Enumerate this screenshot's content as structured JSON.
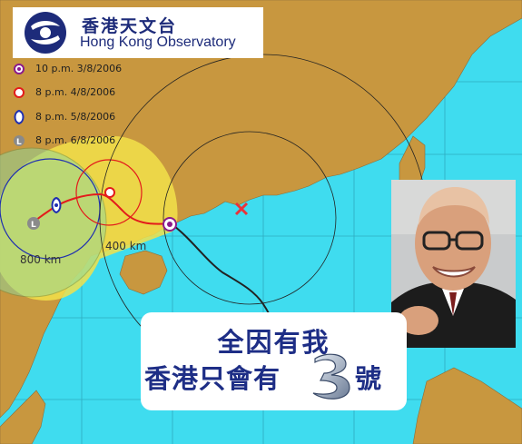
{
  "logo": {
    "name_zh": "香港天文台",
    "name_en": "Hong Kong Observatory"
  },
  "legend": [
    {
      "label": "10 p.m. 3/8/2006",
      "color": "#8b1a8b",
      "icon": "typhoon-icon"
    },
    {
      "label": "8 p.m. 4/8/2006",
      "color": "#e31b1b",
      "icon": "typhoon-icon"
    },
    {
      "label": "8 p.m. 5/8/2006",
      "color": "#1f2fb0",
      "icon": "typhoon-icon"
    },
    {
      "label": "8 p.m. 6/8/2006",
      "color": "#8a8a8a",
      "icon": "low-pressure-icon"
    }
  ],
  "map": {
    "radius_labels": [
      "400 km",
      "800 km"
    ],
    "colors": {
      "sea": "#3fdcef",
      "land": "#c8973f",
      "probability_cone": "#f2e14a",
      "track_past": "#222222",
      "track_forecast": "#e31b1b",
      "marker": "#e8333a"
    }
  },
  "caption": {
    "line1": "全因有我",
    "line2": "香港只會有",
    "line2_suffix": "號"
  }
}
